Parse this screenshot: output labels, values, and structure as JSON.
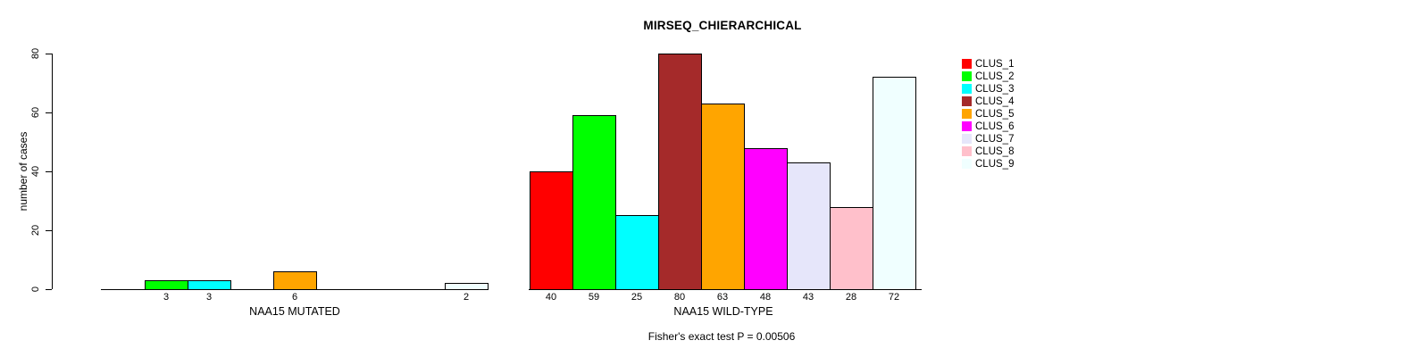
{
  "chart_data": {
    "type": "bar",
    "title": "MIRSEQ_CHIERARCHICAL",
    "ylabel": "number of cases",
    "yticks": [
      0,
      20,
      40,
      60,
      80
    ],
    "ylim": [
      0,
      80
    ],
    "grid": false,
    "legend_position": "right",
    "clusters": [
      "CLUS_1",
      "CLUS_2",
      "CLUS_3",
      "CLUS_4",
      "CLUS_5",
      "CLUS_6",
      "CLUS_7",
      "CLUS_8",
      "CLUS_9"
    ],
    "colors": [
      "#FF0000",
      "#00FF00",
      "#00FFFF",
      "#A52A2A",
      "#FFA500",
      "#FF00FF",
      "#E6E6FA",
      "#FFC0CB",
      "#F0FFFF"
    ],
    "groups": [
      {
        "label": "NAA15 MUTATED",
        "values": [
          0,
          3,
          3,
          0,
          6,
          0,
          0,
          0,
          2
        ]
      },
      {
        "label": "NAA15 WILD-TYPE",
        "values": [
          40,
          59,
          25,
          80,
          63,
          48,
          43,
          28,
          72
        ]
      }
    ],
    "annotation": "Fisher's exact test P = 0.00506"
  }
}
